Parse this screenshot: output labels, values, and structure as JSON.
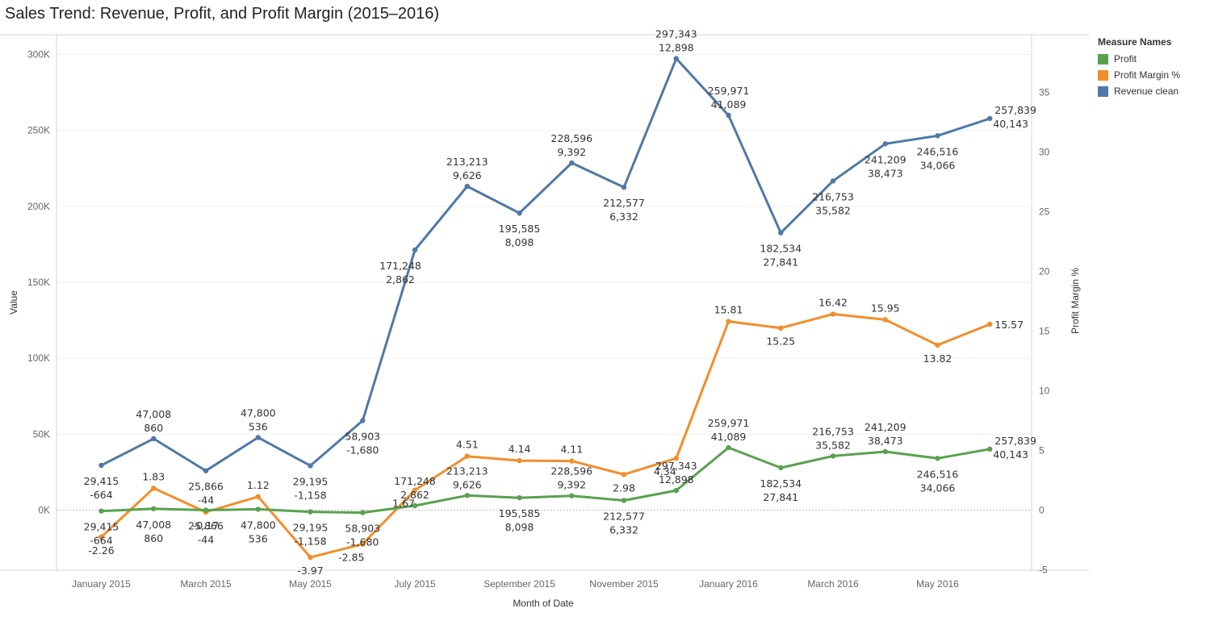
{
  "chart_data": {
    "type": "line",
    "title": "Sales Trend: Revenue, Profit, and Profit Margin (2015–2016)",
    "xlabel": "Month of Date",
    "ylabel": "Value",
    "y2label": "Profit Margin %",
    "ylim": [
      -40000,
      300000
    ],
    "y2lim": [
      -5,
      35
    ],
    "yticks": [
      0,
      50000,
      100000,
      150000,
      200000,
      250000,
      300000
    ],
    "ytick_labels": [
      "0K",
      "50K",
      "100K",
      "150K",
      "200K",
      "250K",
      "300K"
    ],
    "y2ticks": [
      -5,
      0,
      5,
      10,
      15,
      20,
      25,
      30,
      35
    ],
    "y2tick_labels": [
      "-5",
      "0",
      "5",
      "10",
      "15",
      "20",
      "25",
      "30",
      "35"
    ],
    "categories": [
      "January 2015",
      "February 2015",
      "March 2015",
      "April 2015",
      "May 2015",
      "June 2015",
      "July 2015",
      "August 2015",
      "September 2015",
      "October 2015",
      "November 2015",
      "December 2015",
      "January 2016",
      "February 2016",
      "March 2016",
      "April 2016",
      "May 2016",
      "June 2016"
    ],
    "xtick_labels": [
      "January 2015",
      "March 2015",
      "May 2015",
      "July 2015",
      "September 2015",
      "November 2015",
      "January 2016",
      "March 2016",
      "May 2016"
    ],
    "legend_title": "Measure Names",
    "legend_position": "right",
    "grid": true,
    "series": [
      {
        "name": "Revenue clean",
        "axis": "left",
        "color": "#4e79a7",
        "values": [
          29415,
          47008,
          25866,
          47800,
          29195,
          58903,
          171248,
          213213,
          195585,
          228596,
          212577,
          297343,
          259971,
          182534,
          216753,
          241209,
          246516,
          257839
        ],
        "label_top": [
          "29,415",
          "47,008",
          "25,866",
          "47,800",
          "29,195",
          "58,903",
          "171,248",
          "213,213",
          "195,585",
          "228,596",
          "212,577",
          "297,343",
          "259,971",
          "182,534",
          "216,753",
          "241,209",
          "246,516",
          "257,839"
        ],
        "label_bottom": [
          "-664",
          "860",
          "-44",
          "536",
          "-1,158",
          "-1,680",
          "2,862",
          "9,626",
          "8,098",
          "9,392",
          "6,332",
          "12,898",
          "41,089",
          "27,841",
          "35,582",
          "38,473",
          "34,066",
          "40,143"
        ]
      },
      {
        "name": "Profit",
        "axis": "left",
        "color": "#59a14f",
        "values": [
          -664,
          860,
          -44,
          536,
          -1158,
          -1680,
          2862,
          9626,
          8098,
          9392,
          6332,
          12898,
          41089,
          27841,
          35582,
          38473,
          34066,
          40143
        ],
        "label_top": [
          "29,415",
          "47,008",
          "25,866",
          "47,800",
          "29,195",
          "58,903",
          "171,248",
          "213,213",
          "195,585",
          "228,596",
          "212,577",
          "297,343",
          "259,971",
          "182,534",
          "216,753",
          "241,209",
          "246,516",
          "257,839"
        ],
        "label_bottom": [
          "-664",
          "860",
          "-44",
          "536",
          "-1,158",
          "-1,680",
          "2,862",
          "9,626",
          "8,098",
          "9,392",
          "6,332",
          "12,898",
          "41,089",
          "27,841",
          "35,582",
          "38,473",
          "34,066",
          "40,143"
        ]
      },
      {
        "name": "Profit Margin %",
        "axis": "right",
        "color": "#f28e2b",
        "values": [
          -2.26,
          1.83,
          -0.17,
          1.12,
          -3.97,
          -2.85,
          1.67,
          4.51,
          4.14,
          4.11,
          2.98,
          4.34,
          15.81,
          15.25,
          16.42,
          15.95,
          13.82,
          15.57
        ],
        "labels": [
          "-2.26",
          "1.83",
          "-0.17",
          "1.12",
          "-3.97",
          "-2.85",
          "1.67",
          "4.51",
          "4.14",
          "4.11",
          "2.98",
          "4.34",
          "15.81",
          "15.25",
          "16.42",
          "15.95",
          "13.82",
          "15.57"
        ]
      }
    ],
    "legend_order": [
      "Profit",
      "Profit Margin %",
      "Revenue clean"
    ]
  }
}
